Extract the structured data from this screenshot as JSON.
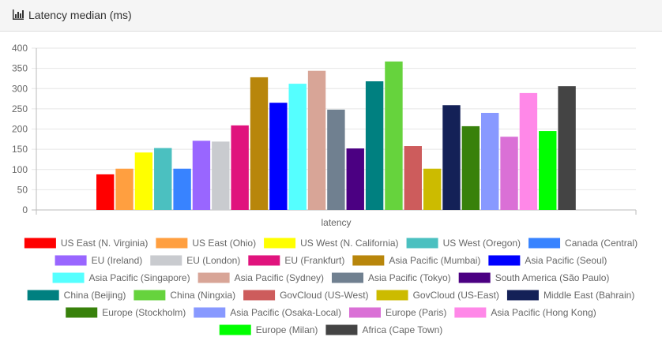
{
  "header": {
    "title": "Latency median (ms)",
    "icon": "bar-chart-icon"
  },
  "chart_data": {
    "type": "bar",
    "xlabel": "latency",
    "ylabel": "",
    "ylim": [
      0,
      400
    ],
    "yticks": [
      0,
      50,
      100,
      150,
      200,
      250,
      300,
      350,
      400
    ],
    "categories": [
      "latency"
    ],
    "grid": true,
    "legend_position": "bottom",
    "series": [
      {
        "name": "US East (N. Virginia)",
        "color": "#ff0000",
        "values": [
          88
        ]
      },
      {
        "name": "US East (Ohio)",
        "color": "#ff9f40",
        "values": [
          102
        ]
      },
      {
        "name": "US West (N. California)",
        "color": "#ffff00",
        "values": [
          142
        ]
      },
      {
        "name": "US West (Oregon)",
        "color": "#4bc0c0",
        "values": [
          153
        ]
      },
      {
        "name": "Canada (Central)",
        "color": "#3883ff",
        "values": [
          102
        ]
      },
      {
        "name": "EU (Ireland)",
        "color": "#9966ff",
        "values": [
          171
        ]
      },
      {
        "name": "EU (London)",
        "color": "#c9cbcf",
        "values": [
          169
        ]
      },
      {
        "name": "EU (Frankfurt)",
        "color": "#e0137d",
        "values": [
          209
        ]
      },
      {
        "name": "Asia Pacific (Mumbai)",
        "color": "#b8860b",
        "values": [
          328
        ]
      },
      {
        "name": "Asia Pacific (Seoul)",
        "color": "#0000ff",
        "values": [
          265
        ]
      },
      {
        "name": "Asia Pacific (Singapore)",
        "color": "#55ffff",
        "values": [
          312
        ]
      },
      {
        "name": "Asia Pacific (Sydney)",
        "color": "#d8a597",
        "values": [
          344
        ]
      },
      {
        "name": "Asia Pacific (Tokyo)",
        "color": "#708090",
        "values": [
          248
        ]
      },
      {
        "name": "South America (São Paulo)",
        "color": "#4b0082",
        "values": [
          152
        ]
      },
      {
        "name": "China (Beijing)",
        "color": "#008080",
        "values": [
          318
        ]
      },
      {
        "name": "China (Ningxia)",
        "color": "#66d33d",
        "values": [
          367
        ]
      },
      {
        "name": "GovCloud (US-West)",
        "color": "#cd5c5c",
        "values": [
          158
        ]
      },
      {
        "name": "GovCloud (US-East)",
        "color": "#ccbb00",
        "values": [
          102
        ]
      },
      {
        "name": "Middle East (Bahrain)",
        "color": "#142157",
        "values": [
          259
        ]
      },
      {
        "name": "Europe (Stockholm)",
        "color": "#38810b",
        "values": [
          207
        ]
      },
      {
        "name": "Asia Pacific (Osaka-Local)",
        "color": "#8899ff",
        "values": [
          240
        ]
      },
      {
        "name": "Europe (Paris)",
        "color": "#da70d6",
        "values": [
          181
        ]
      },
      {
        "name": "Asia Pacific (Hong Kong)",
        "color": "#ff88e8",
        "values": [
          289
        ]
      },
      {
        "name": "Europe (Milan)",
        "color": "#00ff00",
        "values": [
          195
        ]
      },
      {
        "name": "Africa (Cape Town)",
        "color": "#444444",
        "values": [
          306
        ]
      }
    ]
  }
}
